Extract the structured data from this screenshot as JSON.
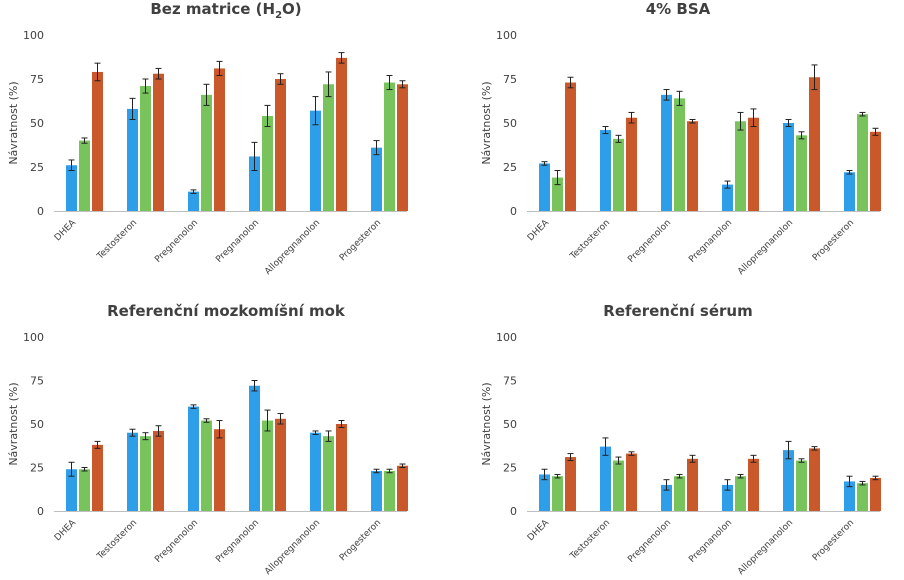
{
  "colors": {
    "blue": "#2e9ee8",
    "green": "#79c35d",
    "orange": "#c9582a",
    "axis": "#bfbfbf",
    "text": "#404040"
  },
  "chart_data": [
    {
      "type": "bar",
      "title_main": "Bez matrice (H",
      "title_sub": "2",
      "title_end": "O)",
      "ylabel": "Návratnost (%)",
      "ylim": [
        0,
        100
      ],
      "yticks": [
        "0",
        "25",
        "50",
        "75",
        "100"
      ],
      "categories": [
        "DHEA",
        "Testosteron",
        "Pregnenolon",
        "Pregnanolon",
        "Allopregnanolon",
        "Progesteron"
      ],
      "series": [
        {
          "color": "blue",
          "values": [
            26,
            58,
            11,
            31,
            57,
            36
          ],
          "errors": [
            3,
            6,
            1,
            8,
            8,
            4
          ]
        },
        {
          "color": "green",
          "values": [
            40,
            71,
            66,
            54,
            72,
            73
          ],
          "errors": [
            1.5,
            4,
            6,
            6,
            7,
            4
          ]
        },
        {
          "color": "orange",
          "values": [
            79,
            78,
            81,
            75,
            87,
            72
          ],
          "errors": [
            5,
            3,
            4,
            3,
            3,
            2
          ]
        }
      ]
    },
    {
      "type": "bar",
      "title_main": "4% BSA",
      "title_sub": "",
      "title_end": "",
      "ylabel": "Návratnost (%)",
      "ylim": [
        0,
        100
      ],
      "yticks": [
        "0",
        "25",
        "50",
        "75",
        "100"
      ],
      "categories": [
        "DHEA",
        "Testosteron",
        "Pregnenolon",
        "Pregnanolon",
        "Allopregnanolon",
        "Progesteron"
      ],
      "series": [
        {
          "color": "blue",
          "values": [
            27,
            46,
            66,
            15,
            50,
            22
          ],
          "errors": [
            1,
            2,
            3,
            2,
            2,
            1
          ]
        },
        {
          "color": "green",
          "values": [
            19,
            41,
            64,
            51,
            43,
            55
          ],
          "errors": [
            4,
            2,
            4,
            5,
            2,
            1
          ]
        },
        {
          "color": "orange",
          "values": [
            73,
            53,
            51,
            53,
            76,
            45
          ],
          "errors": [
            3,
            3,
            1,
            5,
            7,
            2
          ]
        }
      ]
    },
    {
      "type": "bar",
      "title_main": "Referenční mozkomíšní mok",
      "title_sub": "",
      "title_end": "",
      "ylabel": "Návratnost (%)",
      "ylim": [
        0,
        100
      ],
      "yticks": [
        "0",
        "25",
        "50",
        "75",
        "100"
      ],
      "categories": [
        "DHEA",
        "Testosteron",
        "Pregnenolon",
        "Pregnanolon",
        "Allopregnanolon",
        "Progesteron"
      ],
      "series": [
        {
          "color": "blue",
          "values": [
            24,
            45,
            60,
            72,
            45,
            23
          ],
          "errors": [
            4,
            2,
            1,
            3,
            1,
            1
          ]
        },
        {
          "color": "green",
          "values": [
            24,
            43,
            52,
            52,
            43,
            23
          ],
          "errors": [
            1,
            2,
            1,
            6,
            3,
            1
          ]
        },
        {
          "color": "orange",
          "values": [
            38,
            46,
            47,
            53,
            50,
            26
          ],
          "errors": [
            2,
            3,
            5,
            3,
            2,
            1
          ]
        }
      ]
    },
    {
      "type": "bar",
      "title_main": "Referenční sérum",
      "title_sub": "",
      "title_end": "",
      "ylabel": "Návratnost (%)",
      "ylim": [
        0,
        100
      ],
      "yticks": [
        "0",
        "25",
        "50",
        "75",
        "100"
      ],
      "categories": [
        "DHEA",
        "Testosteron",
        "Pregnenolon",
        "Pregnanolon",
        "Allopregnanolon",
        "Progesteron"
      ],
      "series": [
        {
          "color": "blue",
          "values": [
            21,
            37,
            15,
            15,
            35,
            17
          ],
          "errors": [
            3,
            5,
            3,
            3,
            5,
            3
          ]
        },
        {
          "color": "green",
          "values": [
            20,
            29,
            20,
            20,
            29,
            16
          ],
          "errors": [
            1,
            2,
            1,
            1,
            1,
            1
          ]
        },
        {
          "color": "orange",
          "values": [
            31,
            33,
            30,
            30,
            36,
            19
          ],
          "errors": [
            2,
            1,
            2,
            2,
            1,
            1
          ]
        }
      ]
    }
  ]
}
